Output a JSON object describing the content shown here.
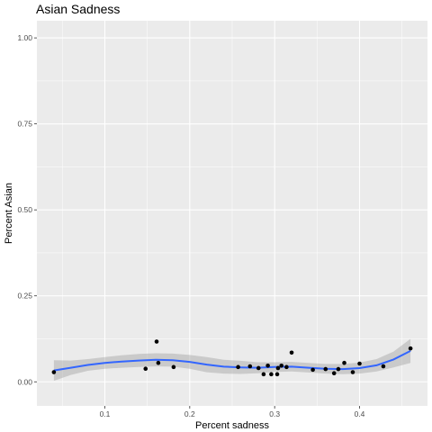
{
  "chart_data": {
    "type": "scatter",
    "title": "Asian Sadness",
    "xlabel": "Percent sadness",
    "ylabel": "Percent Asian",
    "xlim": [
      0.02,
      0.48
    ],
    "ylim": [
      -0.07,
      1.05
    ],
    "x_ticks": [
      {
        "value": 0.1,
        "label": "0.1"
      },
      {
        "value": 0.2,
        "label": "0.2"
      },
      {
        "value": 0.3,
        "label": "0.3"
      },
      {
        "value": 0.4,
        "label": "0.4"
      }
    ],
    "y_ticks": [
      {
        "value": 0.0,
        "label": "0.00"
      },
      {
        "value": 0.25,
        "label": "0.25"
      },
      {
        "value": 0.5,
        "label": "0.50"
      },
      {
        "value": 0.75,
        "label": "0.75"
      },
      {
        "value": 1.0,
        "label": "1.00"
      }
    ],
    "points": [
      {
        "x": 0.04,
        "y": 0.028
      },
      {
        "x": 0.148,
        "y": 0.038
      },
      {
        "x": 0.161,
        "y": 0.117
      },
      {
        "x": 0.163,
        "y": 0.055
      },
      {
        "x": 0.181,
        "y": 0.043
      },
      {
        "x": 0.257,
        "y": 0.043
      },
      {
        "x": 0.271,
        "y": 0.045
      },
      {
        "x": 0.281,
        "y": 0.04
      },
      {
        "x": 0.287,
        "y": 0.022
      },
      {
        "x": 0.292,
        "y": 0.047
      },
      {
        "x": 0.296,
        "y": 0.022
      },
      {
        "x": 0.303,
        "y": 0.022
      },
      {
        "x": 0.304,
        "y": 0.04
      },
      {
        "x": 0.308,
        "y": 0.047
      },
      {
        "x": 0.314,
        "y": 0.043
      },
      {
        "x": 0.32,
        "y": 0.085
      },
      {
        "x": 0.345,
        "y": 0.035
      },
      {
        "x": 0.36,
        "y": 0.037
      },
      {
        "x": 0.37,
        "y": 0.025
      },
      {
        "x": 0.375,
        "y": 0.037
      },
      {
        "x": 0.382,
        "y": 0.055
      },
      {
        "x": 0.392,
        "y": 0.028
      },
      {
        "x": 0.4,
        "y": 0.053
      },
      {
        "x": 0.428,
        "y": 0.045
      },
      {
        "x": 0.46,
        "y": 0.097
      }
    ],
    "smooth": {
      "method": "loess",
      "color": "#3366ff",
      "band_color": "#999999",
      "x": [
        0.04,
        0.06,
        0.08,
        0.1,
        0.12,
        0.14,
        0.16,
        0.18,
        0.2,
        0.22,
        0.24,
        0.26,
        0.28,
        0.3,
        0.32,
        0.34,
        0.36,
        0.38,
        0.4,
        0.42,
        0.44,
        0.46
      ],
      "y": [
        0.033,
        0.041,
        0.049,
        0.055,
        0.059,
        0.062,
        0.064,
        0.063,
        0.058,
        0.05,
        0.044,
        0.042,
        0.041,
        0.043,
        0.044,
        0.041,
        0.038,
        0.037,
        0.04,
        0.048,
        0.065,
        0.09
      ],
      "lower": [
        0.003,
        0.02,
        0.032,
        0.038,
        0.041,
        0.043,
        0.045,
        0.044,
        0.038,
        0.028,
        0.024,
        0.023,
        0.025,
        0.029,
        0.03,
        0.027,
        0.024,
        0.022,
        0.024,
        0.03,
        0.042,
        0.055
      ],
      "upper": [
        0.063,
        0.062,
        0.066,
        0.072,
        0.077,
        0.081,
        0.083,
        0.082,
        0.078,
        0.072,
        0.064,
        0.061,
        0.057,
        0.057,
        0.058,
        0.055,
        0.052,
        0.052,
        0.056,
        0.066,
        0.088,
        0.125
      ]
    },
    "colors": {
      "panel": "#ebebeb",
      "grid_major": "#ffffff",
      "point": "#000000"
    }
  }
}
